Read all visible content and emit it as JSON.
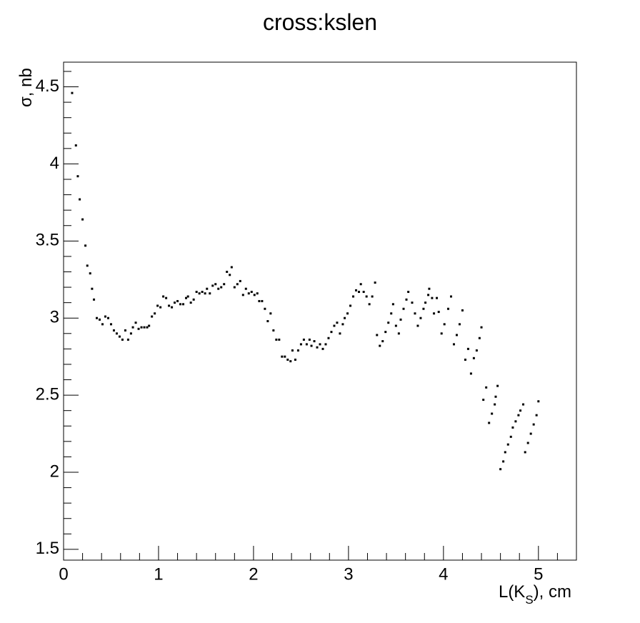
{
  "chart_data": {
    "type": "scatter",
    "title": "cross:kslen",
    "xlabel": [
      "L(K",
      "S",
      "), cm"
    ],
    "ylabel": "σ, nb",
    "color": "#000000",
    "xlim": [
      0,
      5.4
    ],
    "ylim": [
      1.43,
      4.66
    ],
    "xticks": [
      0,
      1,
      2,
      3,
      4,
      5
    ],
    "yticks": [
      1.5,
      2,
      2.5,
      3,
      3.5,
      4,
      4.5
    ],
    "xticks_minor": [
      0.2,
      0.4,
      0.6,
      0.8,
      1.2,
      1.4,
      1.6,
      1.8,
      2.2,
      2.4,
      2.6,
      2.8,
      3.2,
      3.4,
      3.6,
      3.8,
      4.2,
      4.4,
      4.6,
      4.8,
      5.2
    ],
    "yticks_minor": [
      1.6,
      1.7,
      1.8,
      1.9,
      2.1,
      2.2,
      2.3,
      2.4,
      2.6,
      2.7,
      2.8,
      2.9,
      3.1,
      3.2,
      3.3,
      3.4,
      3.6,
      3.7,
      3.8,
      3.9,
      4.1,
      4.2,
      4.3,
      4.4,
      4.6
    ],
    "x": [
      0.09,
      0.13,
      0.15,
      0.17,
      0.2,
      0.23,
      0.25,
      0.28,
      0.3,
      0.32,
      0.35,
      0.38,
      0.41,
      0.44,
      0.47,
      0.5,
      0.53,
      0.56,
      0.59,
      0.62,
      0.65,
      0.68,
      0.71,
      0.73,
      0.76,
      0.79,
      0.82,
      0.85,
      0.88,
      0.9,
      0.93,
      0.96,
      0.99,
      1.02,
      1.05,
      1.08,
      1.11,
      1.14,
      1.17,
      1.2,
      1.23,
      1.26,
      1.29,
      1.31,
      1.34,
      1.37,
      1.4,
      1.43,
      1.46,
      1.49,
      1.51,
      1.54,
      1.57,
      1.6,
      1.63,
      1.66,
      1.69,
      1.72,
      1.75,
      1.77,
      1.8,
      1.83,
      1.86,
      1.89,
      1.92,
      1.95,
      1.98,
      2.01,
      2.04,
      2.06,
      2.09,
      2.12,
      2.15,
      2.18,
      2.21,
      2.24,
      2.27,
      2.3,
      2.33,
      2.36,
      2.39,
      2.41,
      2.44,
      2.47,
      2.5,
      2.53,
      2.56,
      2.59,
      2.61,
      2.64,
      2.67,
      2.7,
      2.73,
      2.76,
      2.79,
      2.82,
      2.85,
      2.88,
      2.91,
      2.94,
      2.96,
      2.99,
      3.02,
      3.05,
      3.08,
      3.11,
      3.13,
      3.16,
      3.19,
      3.22,
      3.25,
      3.28,
      3.3,
      3.33,
      3.36,
      3.39,
      3.42,
      3.45,
      3.47,
      3.5,
      3.53,
      3.55,
      3.58,
      3.61,
      3.63,
      3.67,
      3.7,
      3.73,
      3.76,
      3.79,
      3.81,
      3.84,
      3.85,
      3.88,
      3.9,
      3.93,
      3.95,
      3.98,
      4.01,
      4.05,
      4.08,
      4.11,
      4.14,
      4.17,
      4.2,
      4.23,
      4.26,
      4.29,
      4.32,
      4.35,
      4.38,
      4.4,
      4.42,
      4.45,
      4.48,
      4.51,
      4.54,
      4.55,
      4.57,
      4.6,
      4.63,
      4.65,
      4.68,
      4.71,
      4.73,
      4.76,
      4.79,
      4.81,
      4.84,
      4.86,
      4.89,
      4.92,
      4.95,
      4.98,
      5.0
    ],
    "values": [
      4.46,
      4.12,
      3.92,
      3.77,
      3.64,
      3.47,
      3.34,
      3.29,
      3.19,
      3.12,
      3.0,
      2.99,
      2.96,
      3.01,
      3.0,
      2.96,
      2.92,
      2.9,
      2.88,
      2.86,
      2.92,
      2.86,
      2.9,
      2.94,
      2.97,
      2.93,
      2.94,
      2.94,
      2.94,
      2.95,
      3.01,
      3.03,
      3.08,
      3.07,
      3.14,
      3.13,
      3.08,
      3.07,
      3.1,
      3.11,
      3.09,
      3.09,
      3.13,
      3.14,
      3.1,
      3.12,
      3.17,
      3.16,
      3.17,
      3.16,
      3.19,
      3.16,
      3.21,
      3.22,
      3.19,
      3.2,
      3.22,
      3.3,
      3.28,
      3.33,
      3.2,
      3.22,
      3.24,
      3.15,
      3.19,
      3.16,
      3.17,
      3.15,
      3.16,
      3.11,
      3.11,
      3.06,
      2.98,
      3.03,
      2.92,
      2.86,
      2.86,
      2.75,
      2.75,
      2.73,
      2.72,
      2.79,
      2.73,
      2.79,
      2.83,
      2.86,
      2.83,
      2.86,
      2.82,
      2.85,
      2.81,
      2.83,
      2.8,
      2.83,
      2.87,
      2.91,
      2.95,
      2.97,
      2.9,
      2.96,
      3.0,
      3.03,
      3.08,
      3.14,
      3.18,
      3.17,
      3.22,
      3.17,
      3.14,
      3.09,
      3.14,
      3.23,
      2.89,
      2.82,
      2.85,
      2.91,
      2.97,
      3.03,
      3.09,
      2.95,
      2.9,
      2.99,
      3.06,
      3.12,
      3.17,
      3.1,
      3.03,
      2.95,
      3.0,
      3.06,
      3.1,
      3.15,
      3.19,
      3.13,
      3.03,
      3.13,
      3.04,
      2.9,
      2.96,
      3.06,
      3.14,
      2.83,
      2.89,
      2.96,
      3.05,
      2.73,
      2.8,
      2.64,
      2.74,
      2.79,
      2.87,
      2.94,
      2.47,
      2.55,
      2.32,
      2.38,
      2.44,
      2.49,
      2.56,
      2.02,
      2.07,
      2.13,
      2.18,
      2.23,
      2.29,
      2.33,
      2.37,
      2.4,
      2.44,
      2.13,
      2.19,
      2.25,
      2.31,
      2.37,
      2.46
    ]
  }
}
